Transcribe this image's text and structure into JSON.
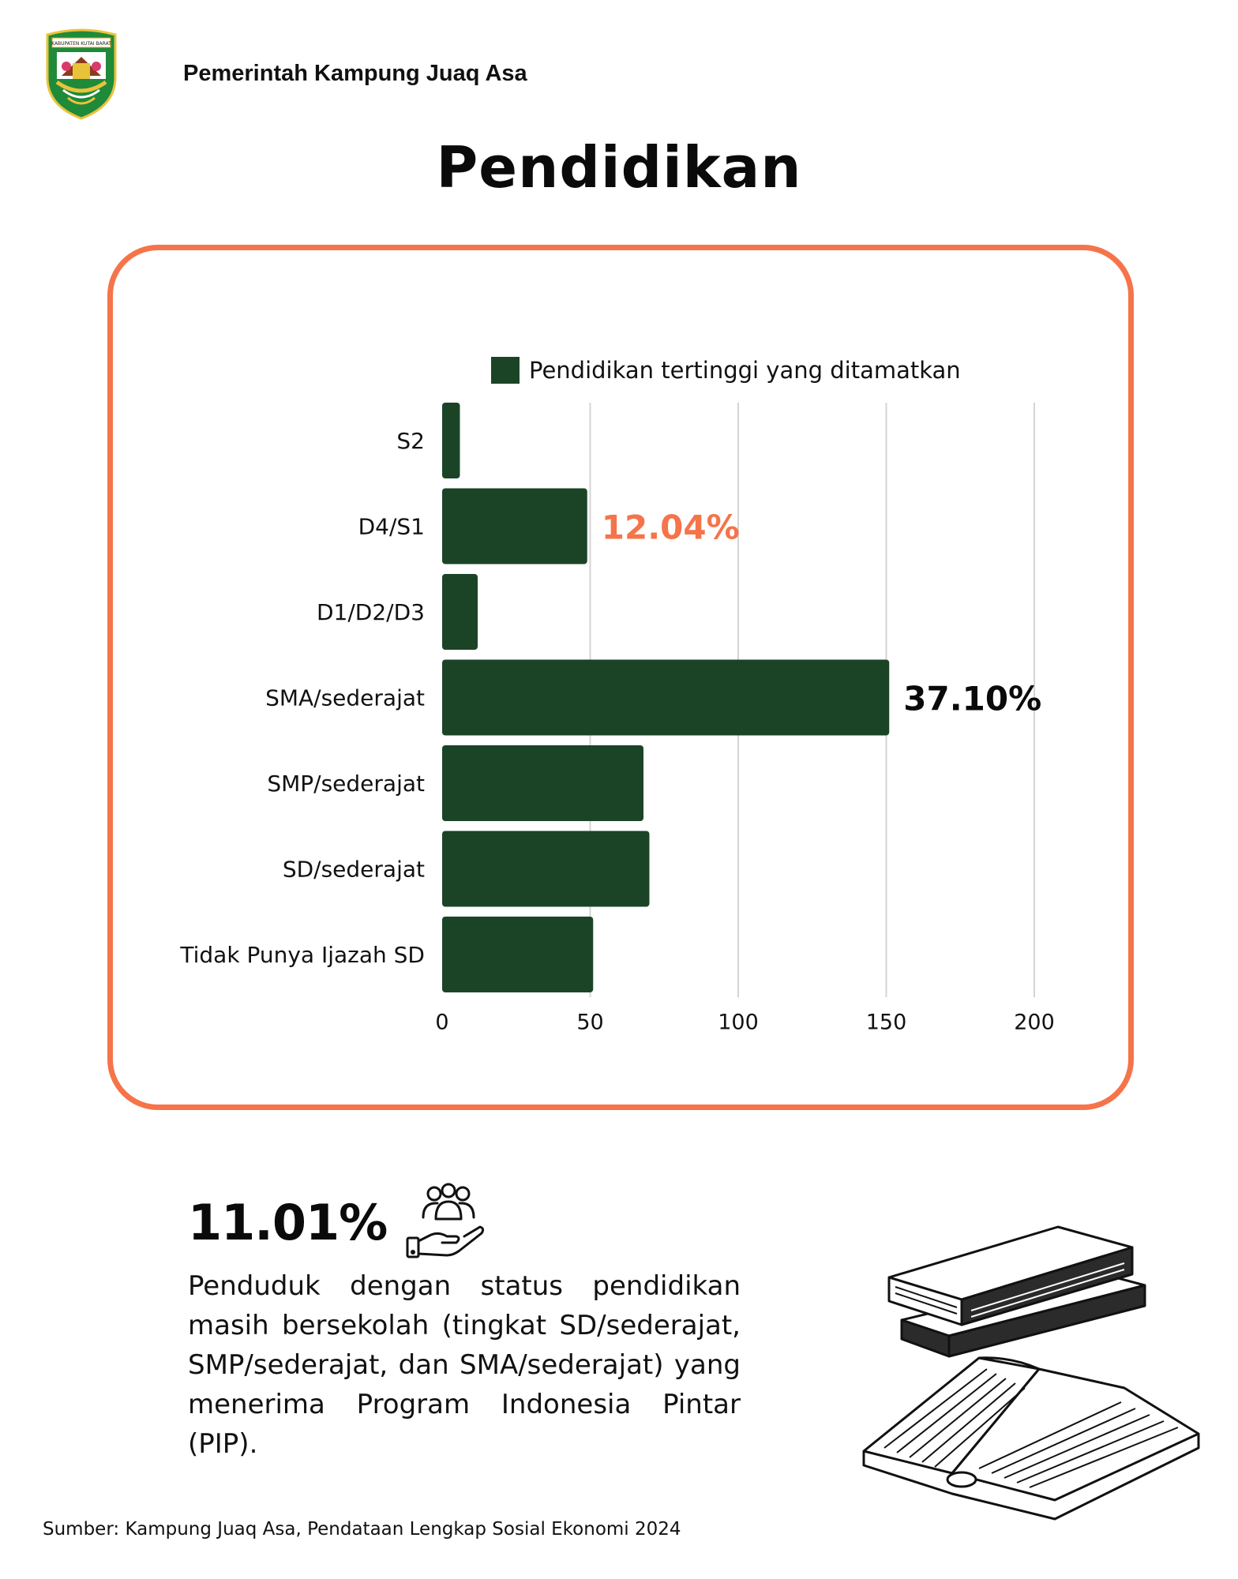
{
  "header": {
    "org_name": "Pemerintah Kampung Juaq Asa",
    "emblem_text": "KABUPATEN KUTAI BARAT"
  },
  "page_title": "Pendidikan",
  "chart_data": {
    "type": "bar",
    "orientation": "horizontal",
    "categories": [
      "S2",
      "D4/S1",
      "D1/D2/D3",
      "SMA/sederajat",
      "SMP/sederajat",
      "SD/sederajat",
      "Tidak Punya Ijazah SD"
    ],
    "series": [
      {
        "name": "Pendidikan tertinggi yang ditamatkan",
        "values": [
          6,
          49,
          12,
          151,
          68,
          70,
          51
        ],
        "color": "#1b4427"
      }
    ],
    "xlim": [
      0,
      200
    ],
    "xticks": [
      "0",
      "50",
      "100",
      "150",
      "200"
    ],
    "grid": true,
    "legend_position": "top",
    "annotations": [
      {
        "category": "D4/S1",
        "text": "12.04%",
        "color": "#f5744a"
      },
      {
        "category": "SMA/sederajat",
        "text": "37.10%",
        "color": "#0a0a0a"
      }
    ]
  },
  "colors": {
    "accent": "#f5744a",
    "bar": "#1b4427",
    "grid": "#d4d4d4",
    "text": "#111111"
  },
  "stat": {
    "value": "11.01%",
    "icon": "helping-hand-people-icon",
    "description": "Penduduk dengan status pendidikan masih bersekolah (tingkat SD/sederajat, SMP/sederajat, dan SMA/sederajat) yang menerima Program Indonesia Pintar (PIP)."
  },
  "illustration": "books-illustration",
  "source": "Sumber: Kampung Juaq Asa, Pendataan Lengkap Sosial Ekonomi 2024"
}
